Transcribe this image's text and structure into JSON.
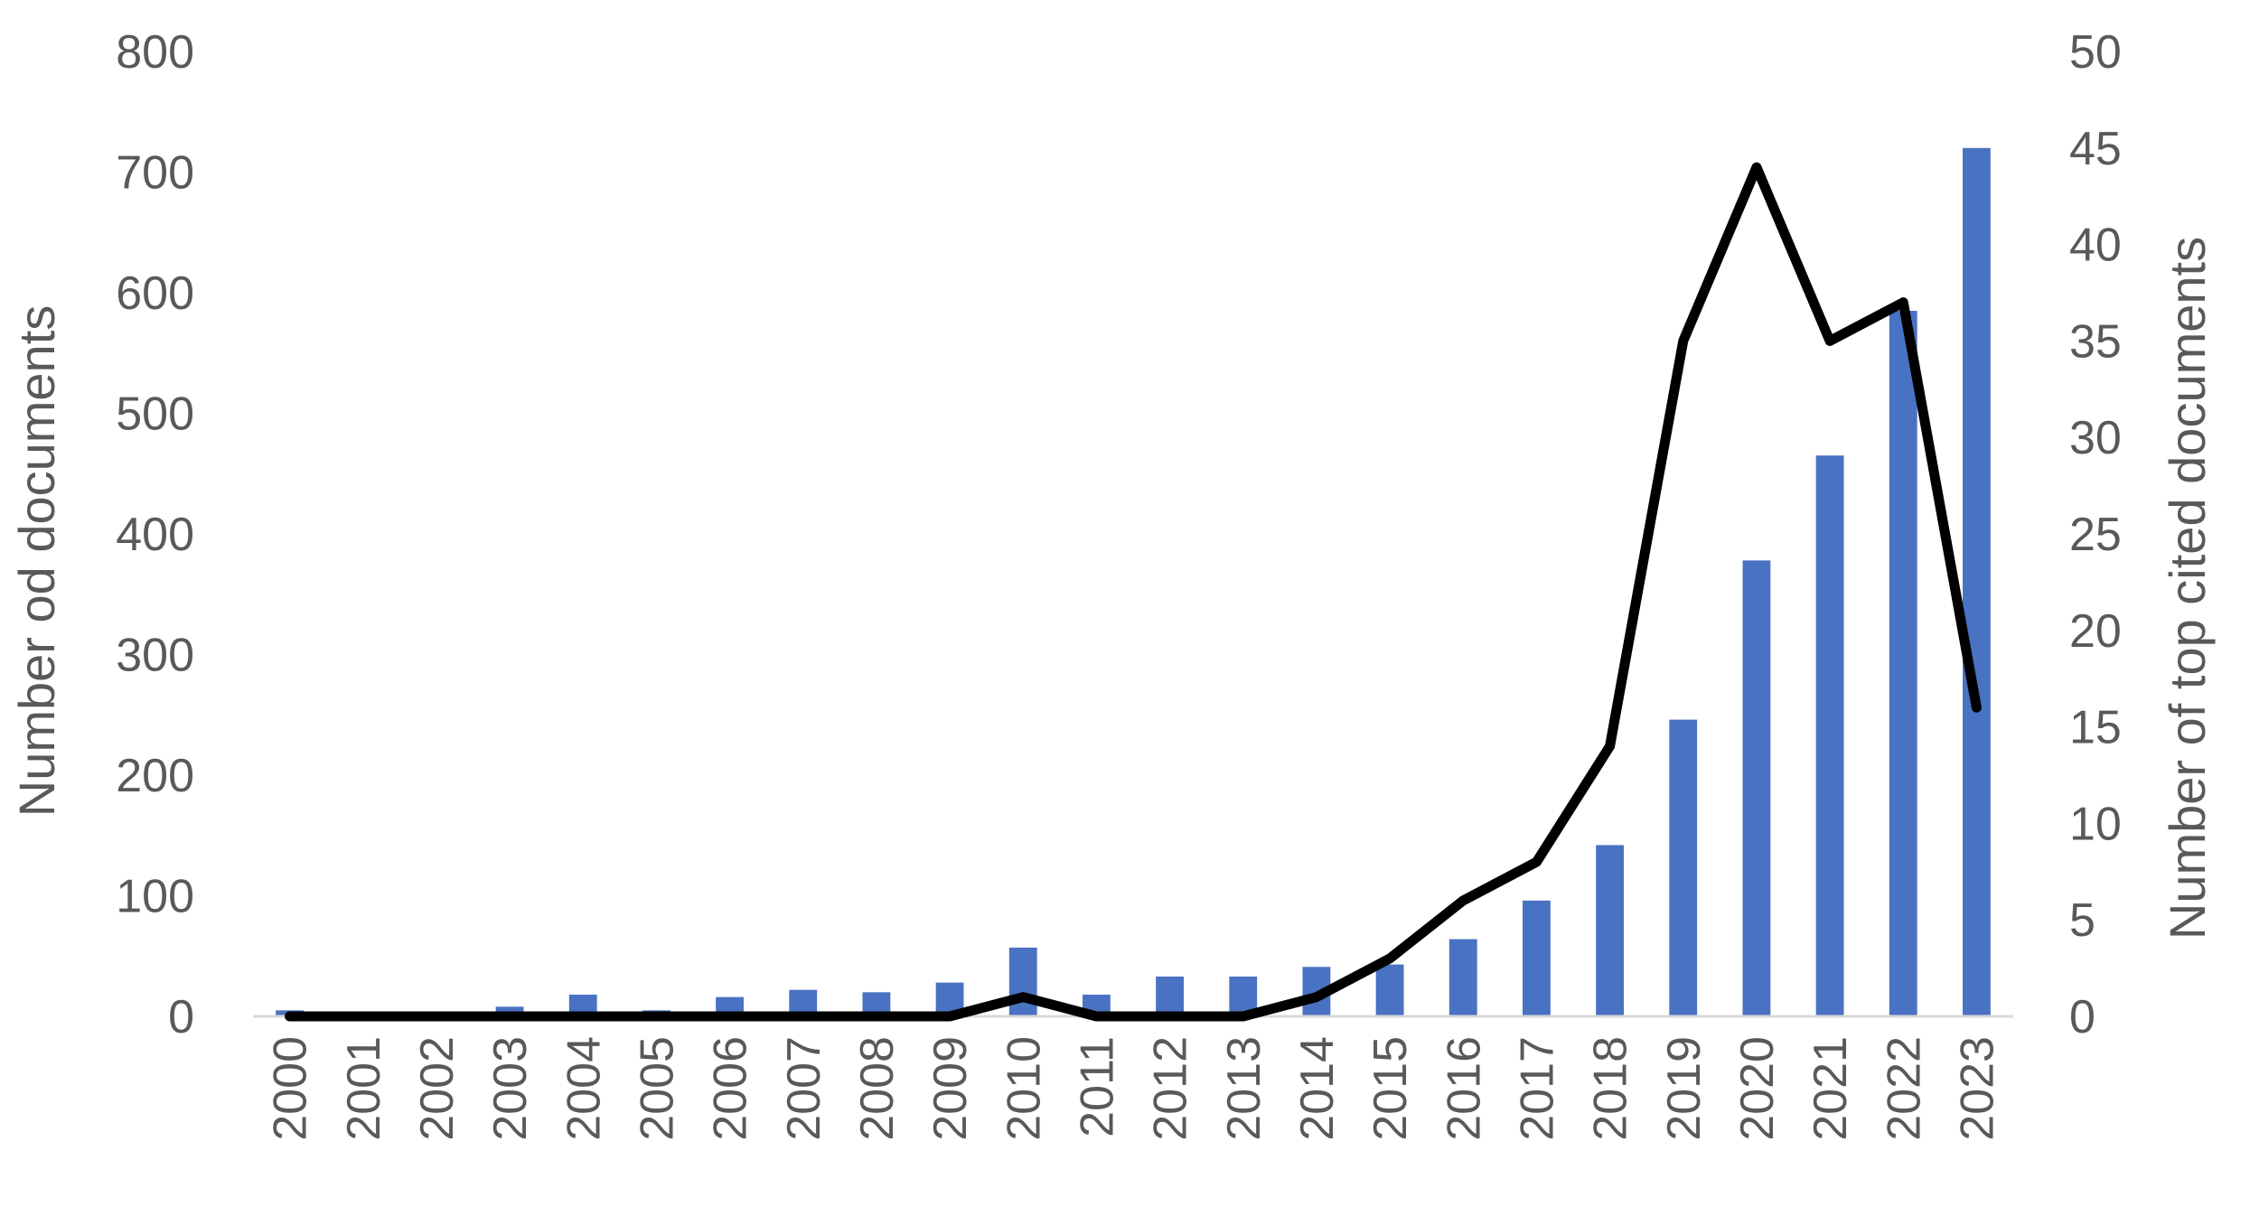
{
  "chart_data": {
    "type": "bar",
    "title": "",
    "xlabel": "",
    "categories": [
      "2000",
      "2001",
      "2002",
      "2003",
      "2004",
      "2005",
      "2006",
      "2007",
      "2008",
      "2009",
      "2010",
      "2011",
      "2012",
      "2013",
      "2014",
      "2015",
      "2016",
      "2017",
      "2018",
      "2019",
      "2020",
      "2021",
      "2022",
      "2023"
    ],
    "y_left": {
      "label": "Number od documents",
      "lim": [
        0,
        800
      ],
      "ticks": [
        0,
        100,
        200,
        300,
        400,
        500,
        600,
        700,
        800
      ]
    },
    "y_right": {
      "label": "Number of top cited documents",
      "lim": [
        0,
        50
      ],
      "ticks": [
        0,
        5,
        10,
        15,
        20,
        25,
        30,
        35,
        40,
        45,
        50
      ]
    },
    "series": [
      {
        "type": "bar",
        "axis": "left",
        "color": "#4a72c2",
        "values": [
          5,
          1,
          3,
          8,
          18,
          5,
          16,
          22,
          20,
          28,
          57,
          18,
          33,
          33,
          41,
          43,
          64,
          96,
          142,
          246,
          378,
          465,
          585,
          720
        ]
      },
      {
        "type": "line",
        "axis": "right",
        "color": "#000000",
        "values": [
          0,
          0,
          0,
          0,
          0,
          0,
          0,
          0,
          0,
          0,
          1,
          0,
          0,
          0,
          1,
          3,
          6,
          8,
          14,
          35,
          44,
          35,
          37,
          16
        ]
      }
    ],
    "grid": false,
    "legend": "none"
  }
}
